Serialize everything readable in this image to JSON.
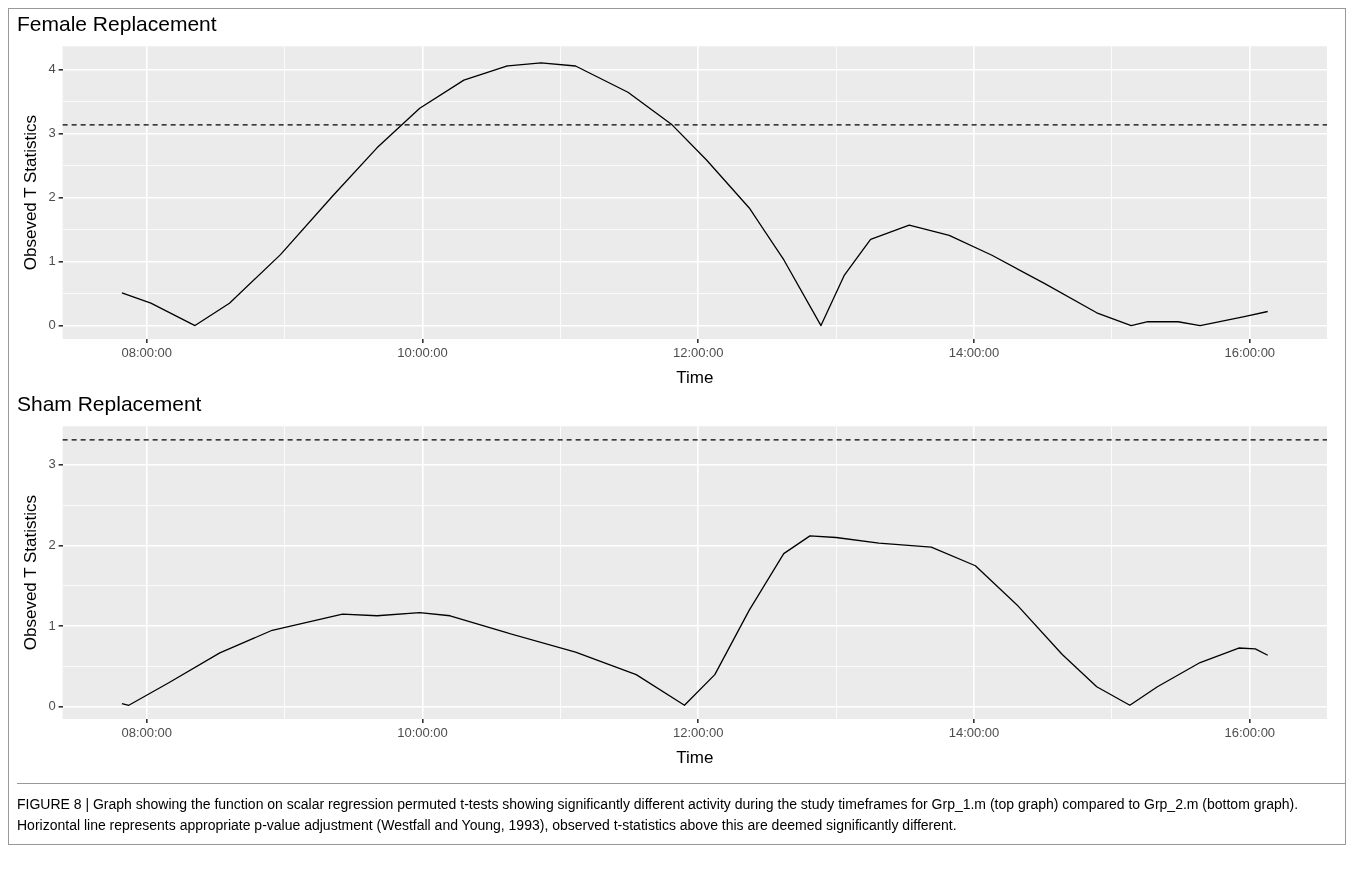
{
  "chart_data": [
    {
      "type": "line",
      "title": "Female Replacement",
      "xlabel": "Time",
      "ylabel": "Obseved T Statistics",
      "grid": true,
      "xlim": [
        7.39,
        16.56
      ],
      "ylim": [
        -0.21,
        4.37
      ],
      "xticks": [
        {
          "value": 8,
          "label": "08:00:00"
        },
        {
          "value": 9,
          "label": null
        },
        {
          "value": 10,
          "label": "10:00:00"
        },
        {
          "value": 11,
          "label": null
        },
        {
          "value": 12,
          "label": "12:00:00"
        },
        {
          "value": 13,
          "label": null
        },
        {
          "value": 14,
          "label": "14:00:00"
        },
        {
          "value": 15,
          "label": null
        },
        {
          "value": 16,
          "label": "16:00:00"
        }
      ],
      "yticks": [
        0,
        {
          "value": 0.5,
          "label": null
        },
        1,
        {
          "value": 1.5,
          "label": null
        },
        2,
        {
          "value": 2.5,
          "label": null
        },
        3,
        {
          "value": 3.5,
          "label": null
        },
        4
      ],
      "ref_lines": [
        {
          "axis": "y",
          "value": 3.14,
          "line_style": "dashed",
          "color": "#000000"
        }
      ],
      "series": [
        {
          "color": "#000000",
          "x": [
            7.82,
            8.03,
            8.35,
            8.6,
            8.97,
            9.35,
            9.67,
            9.98,
            10.3,
            10.61,
            10.86,
            11.11,
            11.49,
            11.81,
            12.06,
            12.37,
            12.62,
            12.89,
            13.06,
            13.25,
            13.53,
            13.82,
            14.13,
            14.51,
            14.89,
            15.14,
            15.26,
            15.48,
            15.64,
            15.96,
            16.13
          ],
          "values": [
            0.51,
            0.35,
            0,
            0.35,
            1.11,
            2.03,
            2.78,
            3.4,
            3.84,
            4.06,
            4.11,
            4.06,
            3.65,
            3.14,
            2.59,
            1.84,
            1.03,
            0,
            0.79,
            1.35,
            1.57,
            1.41,
            1.1,
            0.66,
            0.2,
            0,
            0.06,
            0.06,
            0,
            0.14,
            0.22
          ]
        }
      ]
    },
    {
      "type": "line",
      "title": "Sham Replacement",
      "xlabel": "Time",
      "ylabel": "Obseved T Statistics",
      "grid": true,
      "xlim": [
        7.39,
        16.56
      ],
      "ylim": [
        -0.15,
        3.48
      ],
      "xticks": [
        {
          "value": 8,
          "label": "08:00:00"
        },
        {
          "value": 9,
          "label": null
        },
        {
          "value": 10,
          "label": "10:00:00"
        },
        {
          "value": 11,
          "label": null
        },
        {
          "value": 12,
          "label": "12:00:00"
        },
        {
          "value": 13,
          "label": null
        },
        {
          "value": 14,
          "label": "14:00:00"
        },
        {
          "value": 15,
          "label": null
        },
        {
          "value": 16,
          "label": "16:00:00"
        }
      ],
      "yticks": [
        0,
        {
          "value": 0.5,
          "label": null
        },
        1,
        {
          "value": 1.5,
          "label": null
        },
        2,
        {
          "value": 2.5,
          "label": null
        },
        3
      ],
      "ref_lines": [
        {
          "axis": "y",
          "value": 3.31,
          "line_style": "dashed",
          "color": "#000000"
        }
      ],
      "annotations": [
        "FIGURE 8 | Graph showing the function on scalar regression permuted t-tests showing significantly different activity during the study timeframes for Grp_1.m (top graph) compared to Grp_2.m (bottom graph). Horizontal line represents appropriate p-value adjustment (Westfall and Young, 1993), observed t-statistics above this are deemed significantly different."
      ],
      "series": [
        {
          "color": "#000000",
          "x": [
            7.82,
            7.87,
            8.16,
            8.53,
            8.91,
            9.42,
            9.67,
            9.98,
            10.2,
            10.61,
            11.11,
            11.55,
            11.9,
            12.12,
            12.37,
            12.62,
            12.81,
            13.0,
            13.31,
            13.69,
            14.01,
            14.32,
            14.64,
            14.89,
            15.13,
            15.33,
            15.64,
            15.92,
            16.04,
            16.13
          ],
          "values": [
            0.04,
            0.02,
            0.3,
            0.67,
            0.95,
            1.15,
            1.13,
            1.17,
            1.13,
            0.92,
            0.68,
            0.4,
            0.02,
            0.4,
            1.2,
            1.9,
            2.12,
            2.1,
            2.03,
            1.98,
            1.75,
            1.25,
            0.65,
            0.25,
            0.02,
            0.25,
            0.55,
            0.73,
            0.72,
            0.64
          ]
        }
      ]
    }
  ]
}
